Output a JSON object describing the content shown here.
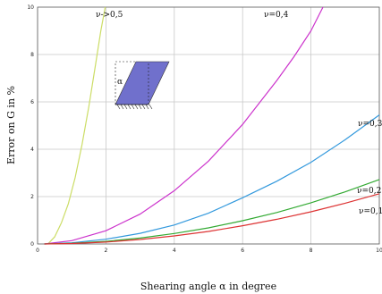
{
  "chart_data": {
    "type": "line",
    "title": "",
    "xlabel": "Shearing angle  α in degree",
    "ylabel": "Error on G in %",
    "xlim": [
      0,
      10
    ],
    "ylim": [
      0,
      10
    ],
    "xticks": [
      "0",
      "2",
      "4",
      "6",
      "8",
      "10"
    ],
    "yticks": [
      "0",
      "2",
      "4",
      "6",
      "8",
      "10"
    ],
    "grid": true,
    "inset_label": "α",
    "series": [
      {
        "name": "ν->0,5",
        "color": "#ccdd66",
        "x": [
          0.3,
          0.5,
          0.7,
          0.9,
          1.1,
          1.3,
          1.5,
          1.7,
          1.85,
          1.98
        ],
        "y": [
          0.0,
          0.3,
          0.9,
          1.7,
          2.8,
          4.2,
          5.8,
          7.6,
          9.0,
          10.0
        ]
      },
      {
        "name": "ν=0,4",
        "color": "#cc33cc",
        "x": [
          0.2,
          1,
          2,
          3,
          4,
          5,
          6,
          7,
          7.5,
          8,
          8.35
        ],
        "y": [
          0.0,
          0.14,
          0.56,
          1.26,
          2.25,
          3.5,
          5.05,
          6.9,
          7.9,
          9.0,
          10.0
        ]
      },
      {
        "name": "ν=0,3",
        "color": "#3399dd",
        "x": [
          0.2,
          1,
          2,
          3,
          4,
          5,
          6,
          7,
          8,
          9,
          10
        ],
        "y": [
          0.0,
          0.05,
          0.2,
          0.45,
          0.8,
          1.3,
          1.95,
          2.65,
          3.45,
          4.4,
          5.45
        ]
      },
      {
        "name": "ν=0,2",
        "color": "#33aa33",
        "x": [
          0.2,
          1,
          2,
          3,
          4,
          5,
          6,
          7,
          8,
          9,
          10
        ],
        "y": [
          0.0,
          0.03,
          0.11,
          0.25,
          0.44,
          0.68,
          0.98,
          1.33,
          1.74,
          2.2,
          2.72
        ]
      },
      {
        "name": "ν=0,1",
        "color": "#dd3333",
        "x": [
          0.2,
          1,
          2,
          3,
          4,
          5,
          6,
          7,
          8,
          9,
          10
        ],
        "y": [
          0.0,
          0.02,
          0.08,
          0.19,
          0.34,
          0.53,
          0.77,
          1.04,
          1.36,
          1.72,
          2.12
        ]
      }
    ]
  }
}
